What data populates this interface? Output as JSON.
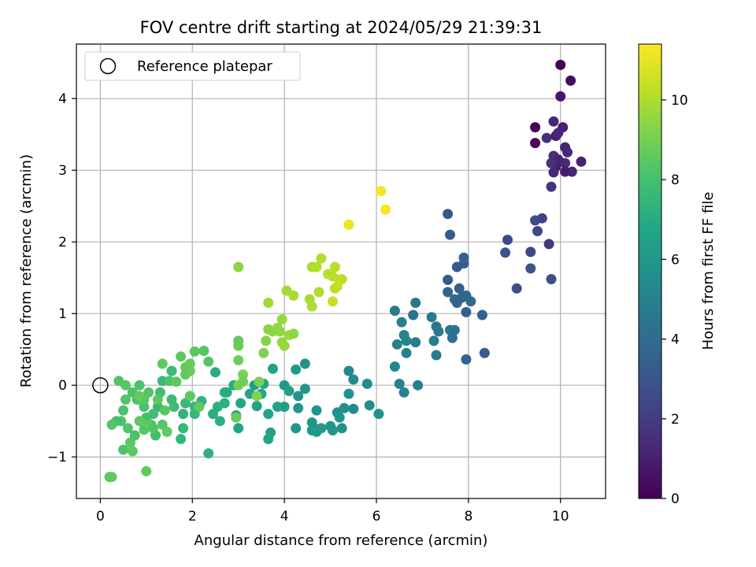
{
  "chart_data": {
    "type": "scatter",
    "title": "FOV centre drift starting at 2024/05/29 21:39:31",
    "xlabel": "Angular distance from reference (arcmin)",
    "ylabel": "Rotation from reference (arcmin)",
    "colorbar_label": "Hours from first FF file",
    "xlim": [
      -0.52,
      10.98
    ],
    "ylim": [
      -1.58,
      4.76
    ],
    "xticks": [
      0,
      2,
      4,
      6,
      8,
      10
    ],
    "yticks": [
      -1,
      0,
      1,
      2,
      3,
      4
    ],
    "colorbar_range": [
      0,
      11.4
    ],
    "colorbar_ticks": [
      0,
      2,
      4,
      6,
      8,
      10
    ],
    "colormap": "viridis",
    "grid": true,
    "legend_position": "top-left",
    "legend": [
      {
        "label": "Reference platepar",
        "marker": "open-circle"
      }
    ],
    "reference_point": {
      "x": 0,
      "y": 0
    },
    "points": [
      [
        10.0,
        4.47,
        0.0
      ],
      [
        10.22,
        4.25,
        0.4
      ],
      [
        10.0,
        4.03,
        0.7
      ],
      [
        9.45,
        3.6,
        0.1
      ],
      [
        9.45,
        3.38,
        0.15
      ],
      [
        9.85,
        3.68,
        1.3
      ],
      [
        10.05,
        3.6,
        1.0
      ],
      [
        9.7,
        3.45,
        1.6
      ],
      [
        9.9,
        3.48,
        0.9
      ],
      [
        9.95,
        3.52,
        1.2
      ],
      [
        9.85,
        3.2,
        1.5
      ],
      [
        10.1,
        3.32,
        1.1
      ],
      [
        10.15,
        3.25,
        1.3
      ],
      [
        9.9,
        3.05,
        0.9
      ],
      [
        10.1,
        3.1,
        1.4
      ],
      [
        10.45,
        3.12,
        1.0
      ],
      [
        10.25,
        2.98,
        1.2
      ],
      [
        9.85,
        2.97,
        1.3
      ],
      [
        10.1,
        2.98,
        0.8
      ],
      [
        9.95,
        3.15,
        1.1
      ],
      [
        9.8,
        2.77,
        1.7
      ],
      [
        9.8,
        3.1,
        1.6
      ],
      [
        9.6,
        2.33,
        2.2
      ],
      [
        9.45,
        2.3,
        2.6
      ],
      [
        9.5,
        2.15,
        2.4
      ],
      [
        9.75,
        1.97,
        1.9
      ],
      [
        8.85,
        2.03,
        2.5
      ],
      [
        8.8,
        1.85,
        2.9
      ],
      [
        9.35,
        1.86,
        2.4
      ],
      [
        9.35,
        1.63,
        2.9
      ],
      [
        9.8,
        1.48,
        2.7
      ],
      [
        9.05,
        1.35,
        2.6
      ],
      [
        7.55,
        2.39,
        3.1
      ],
      [
        7.6,
        2.1,
        3.3
      ],
      [
        7.9,
        1.78,
        3.5
      ],
      [
        7.9,
        1.7,
        3.4
      ],
      [
        7.75,
        1.65,
        3.2
      ],
      [
        7.55,
        1.47,
        3.3
      ],
      [
        7.55,
        1.3,
        3.7
      ],
      [
        7.7,
        1.2,
        3.9
      ],
      [
        7.8,
        1.35,
        3.5
      ],
      [
        7.85,
        1.22,
        3.6
      ],
      [
        7.95,
        1.25,
        3.8
      ],
      [
        8.05,
        1.17,
        3.9
      ],
      [
        7.75,
        1.15,
        3.6
      ],
      [
        7.95,
        1.02,
        3.4
      ],
      [
        8.3,
        0.98,
        3.4
      ],
      [
        8.35,
        0.45,
        3.3
      ],
      [
        7.95,
        0.36,
        3.5
      ],
      [
        7.2,
        0.95,
        4.6
      ],
      [
        7.3,
        0.82,
        4.4
      ],
      [
        7.35,
        0.75,
        4.6
      ],
      [
        7.6,
        0.77,
        4.5
      ],
      [
        7.7,
        0.77,
        4.3
      ],
      [
        7.65,
        0.66,
        4.2
      ],
      [
        7.25,
        0.62,
        4.7
      ],
      [
        7.3,
        0.42,
        4.7
      ],
      [
        6.85,
        1.15,
        4.5
      ],
      [
        6.8,
        0.98,
        4.4
      ],
      [
        6.4,
        1.04,
        4.6
      ],
      [
        6.55,
        0.88,
        4.8
      ],
      [
        6.6,
        0.7,
        5.0
      ],
      [
        6.65,
        0.62,
        5.2
      ],
      [
        6.45,
        0.57,
        5.0
      ],
      [
        6.85,
        0.6,
        4.9
      ],
      [
        6.65,
        0.45,
        5.1
      ],
      [
        6.4,
        0.26,
        5.2
      ],
      [
        6.5,
        0.02,
        5.0
      ],
      [
        6.6,
        -0.1,
        5.1
      ],
      [
        6.9,
        0.0,
        4.8
      ],
      [
        5.8,
        0.02,
        5.5
      ],
      [
        5.5,
        0.08,
        5.4
      ],
      [
        5.4,
        0.2,
        5.3
      ],
      [
        5.4,
        -0.12,
        5.7
      ],
      [
        5.3,
        -0.32,
        5.6
      ],
      [
        5.5,
        -0.33,
        5.4
      ],
      [
        5.15,
        -0.38,
        5.7
      ],
      [
        5.2,
        -0.45,
        5.9
      ],
      [
        5.85,
        -0.28,
        5.5
      ],
      [
        6.05,
        -0.4,
        5.7
      ],
      [
        5.0,
        -0.57,
        5.9
      ],
      [
        5.25,
        -0.6,
        5.8
      ],
      [
        5.05,
        -0.63,
        6.0
      ],
      [
        4.7,
        -0.35,
        5.9
      ],
      [
        4.6,
        -0.52,
        6.0
      ],
      [
        4.65,
        -0.6,
        5.9
      ],
      [
        4.6,
        -0.63,
        6.1
      ],
      [
        4.8,
        -0.6,
        6.1
      ],
      [
        4.7,
        -0.65,
        6.2
      ],
      [
        4.25,
        -0.6,
        6.0
      ],
      [
        4.45,
        0.3,
        5.8
      ],
      [
        4.25,
        0.22,
        6.2
      ],
      [
        4.45,
        -0.05,
        6.0
      ],
      [
        4.3,
        -0.15,
        5.9
      ],
      [
        4.3,
        -0.32,
        6.0
      ],
      [
        4.0,
        0.0,
        6.0
      ],
      [
        4.1,
        -0.08,
        6.3
      ],
      [
        4.0,
        -0.3,
        6.4
      ],
      [
        3.85,
        -0.3,
        6.5
      ],
      [
        3.75,
        0.23,
        6.6
      ],
      [
        3.55,
        0.02,
        6.7
      ],
      [
        3.5,
        -0.12,
        6.8
      ],
      [
        3.35,
        0.0,
        6.5
      ],
      [
        3.4,
        -0.29,
        6.6
      ],
      [
        3.65,
        -0.4,
        6.7
      ],
      [
        3.7,
        -0.66,
        6.5
      ],
      [
        3.65,
        -0.75,
        6.6
      ],
      [
        3.25,
        -0.12,
        6.7
      ],
      [
        3.05,
        -0.25,
        6.8
      ],
      [
        2.95,
        -0.42,
        6.9
      ],
      [
        3.0,
        -0.6,
        6.7
      ],
      [
        2.9,
        0.0,
        7.0
      ],
      [
        2.75,
        -0.1,
        7.0
      ],
      [
        2.7,
        -0.25,
        7.2
      ],
      [
        2.55,
        -0.3,
        7.3
      ],
      [
        2.45,
        -0.4,
        7.1
      ],
      [
        2.6,
        -0.5,
        7.2
      ],
      [
        2.7,
        -0.1,
        7.1
      ],
      [
        2.5,
        0.18,
        7.1
      ],
      [
        2.35,
        -0.95,
        7.3
      ],
      [
        2.2,
        -0.22,
        7.4
      ],
      [
        2.05,
        -0.3,
        7.5
      ],
      [
        2.05,
        -0.4,
        7.6
      ],
      [
        1.8,
        -0.4,
        7.4
      ],
      [
        1.8,
        -0.6,
        7.6
      ],
      [
        1.75,
        -0.75,
        7.5
      ],
      [
        1.55,
        -0.2,
        7.7
      ],
      [
        1.6,
        -0.3,
        7.8
      ],
      [
        1.85,
        -0.25,
        7.7
      ],
      [
        1.55,
        0.2,
        7.7
      ],
      [
        1.35,
        0.06,
        7.7
      ],
      [
        1.3,
        -0.1,
        7.8
      ],
      [
        1.25,
        -0.3,
        7.6
      ],
      [
        1.15,
        -0.4,
        7.9
      ],
      [
        1.1,
        -0.55,
        7.8
      ],
      [
        1.2,
        -0.7,
        7.9
      ],
      [
        1.0,
        -0.45,
        8.0
      ],
      [
        0.95,
        -0.3,
        8.1
      ],
      [
        0.8,
        -0.2,
        8.2
      ],
      [
        0.85,
        0.0,
        8.1
      ],
      [
        0.7,
        -0.1,
        8.2
      ],
      [
        0.55,
        -0.2,
        8.3
      ],
      [
        0.5,
        -0.35,
        8.1
      ],
      [
        0.45,
        -0.5,
        8.2
      ],
      [
        0.35,
        -0.5,
        8.0
      ],
      [
        0.6,
        -0.6,
        8.3
      ],
      [
        0.75,
        -0.7,
        8.1
      ],
      [
        0.65,
        -0.8,
        8.4
      ],
      [
        0.5,
        -0.9,
        8.2
      ],
      [
        0.7,
        -0.92,
        8.5
      ],
      [
        0.25,
        -0.55,
        8.3
      ],
      [
        0.55,
        0.0,
        8.4
      ],
      [
        0.4,
        0.06,
        8.3
      ],
      [
        0.85,
        -0.5,
        8.6
      ],
      [
        0.95,
        -0.62,
        8.4
      ],
      [
        1.05,
        -0.55,
        8.5
      ],
      [
        1.15,
        -0.6,
        8.3
      ],
      [
        1.35,
        -0.55,
        8.4
      ],
      [
        1.45,
        -0.65,
        8.6
      ],
      [
        1.25,
        -0.2,
        8.5
      ],
      [
        1.5,
        0.06,
        8.2
      ],
      [
        1.65,
        0.05,
        8.6
      ],
      [
        1.75,
        0.4,
        8.5
      ],
      [
        1.85,
        0.25,
        8.6
      ],
      [
        1.95,
        0.3,
        8.7
      ],
      [
        2.05,
        0.47,
        8.5
      ],
      [
        2.25,
        0.48,
        8.3
      ],
      [
        2.35,
        0.33,
        8.3
      ],
      [
        1.95,
        0.2,
        8.7
      ],
      [
        1.85,
        0.15,
        8.6
      ],
      [
        1.95,
        -0.15,
        8.5
      ],
      [
        2.15,
        -0.3,
        8.6
      ],
      [
        1.35,
        0.3,
        8.5
      ],
      [
        1.4,
        -0.35,
        8.4
      ],
      [
        1.05,
        -0.1,
        8.3
      ],
      [
        0.95,
        -0.2,
        8.4
      ],
      [
        0.85,
        -0.15,
        8.7
      ],
      [
        0.2,
        -1.28,
        8.3
      ],
      [
        0.25,
        -1.28,
        8.5
      ],
      [
        1.0,
        -1.2,
        8.6
      ],
      [
        2.95,
        -0.45,
        8.8
      ],
      [
        3.0,
        0.0,
        9.0
      ],
      [
        3.1,
        0.15,
        9.1
      ],
      [
        3.1,
        0.05,
        8.9
      ],
      [
        3.0,
        0.35,
        8.9
      ],
      [
        3.0,
        0.55,
        8.8
      ],
      [
        3.0,
        0.62,
        8.7
      ],
      [
        3.45,
        0.05,
        9.1
      ],
      [
        3.4,
        -0.15,
        9.2
      ],
      [
        3.55,
        0.45,
        9.2
      ],
      [
        3.6,
        0.62,
        9.3
      ],
      [
        3.65,
        0.78,
        9.4
      ],
      [
        3.75,
        0.75,
        9.4
      ],
      [
        3.9,
        0.75,
        9.5
      ],
      [
        3.95,
        0.6,
        9.6
      ],
      [
        4.0,
        0.55,
        9.6
      ],
      [
        4.1,
        0.7,
        9.7
      ],
      [
        4.2,
        0.72,
        9.5
      ],
      [
        3.95,
        0.92,
        9.6
      ],
      [
        3.85,
        0.8,
        9.5
      ],
      [
        3.65,
        1.15,
        9.8
      ],
      [
        4.05,
        1.32,
        9.8
      ],
      [
        4.2,
        1.25,
        9.9
      ],
      [
        4.55,
        1.2,
        9.9
      ],
      [
        4.6,
        1.1,
        10.0
      ],
      [
        4.75,
        1.3,
        10.0
      ],
      [
        4.6,
        1.65,
        10.0
      ],
      [
        4.7,
        1.65,
        10.1
      ],
      [
        4.8,
        1.77,
        10.1
      ],
      [
        4.95,
        1.55,
        10.2
      ],
      [
        5.05,
        1.52,
        10.2
      ],
      [
        5.1,
        1.65,
        10.2
      ],
      [
        5.2,
        1.47,
        10.3
      ],
      [
        5.25,
        1.48,
        10.3
      ],
      [
        5.15,
        1.38,
        10.4
      ],
      [
        5.1,
        1.35,
        10.3
      ],
      [
        5.05,
        1.17,
        10.4
      ],
      [
        3.0,
        1.65,
        9.4
      ],
      [
        5.4,
        2.24,
        11.0
      ],
      [
        5.4,
        2.24,
        11.1
      ],
      [
        6.1,
        2.71,
        11.2
      ],
      [
        6.2,
        2.45,
        11.3
      ]
    ]
  }
}
